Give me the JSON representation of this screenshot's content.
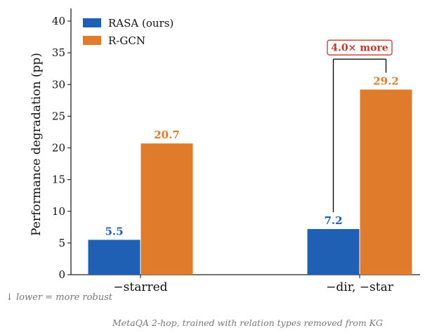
{
  "chart_data": {
    "type": "bar",
    "categories": [
      "−starred",
      "−dir, −star"
    ],
    "series": [
      {
        "name": "RASA (ours)",
        "values": [
          5.5,
          7.2
        ],
        "color": "#1f5fb4"
      },
      {
        "name": "R-GCN",
        "values": [
          20.7,
          29.2
        ],
        "color": "#e07b2c"
      }
    ],
    "data_labels": [
      [
        "5.5",
        "7.2"
      ],
      [
        "20.7",
        "29.2"
      ]
    ],
    "ylabel": "Performance degradation (pp)",
    "xlabel": "",
    "ylim": [
      0,
      42
    ],
    "yticks": [
      "0",
      "5",
      "10",
      "15",
      "20",
      "25",
      "30",
      "35",
      "40"
    ],
    "grid": false,
    "legend_position": "top-left",
    "annotation": {
      "text": "4.0× more",
      "category": "−dir, −star",
      "color": "#c0392b"
    }
  },
  "notes": {
    "robustness": "↓ lower = more robust",
    "caption": "MetaQA 2-hop, trained with relation types removed from KG"
  }
}
